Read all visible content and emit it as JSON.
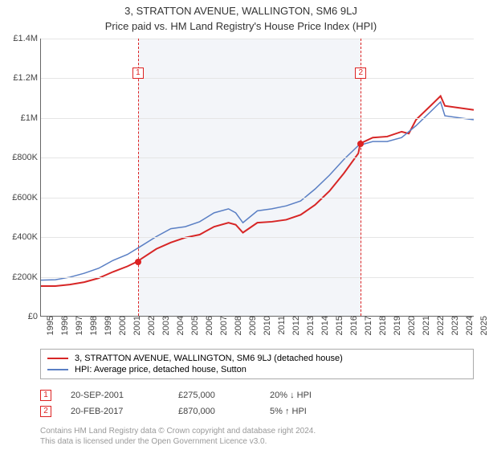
{
  "title_line1": "3, STRATTON AVENUE, WALLINGTON, SM6 9LJ",
  "title_line2": "Price paid vs. HM Land Registry's House Price Index (HPI)",
  "chart": {
    "type": "line",
    "background_color": "#ffffff",
    "shaded_color": "#f3f5f9",
    "grid_color": "#e5e5e5",
    "axis_color": "#666666",
    "label_fontsize": 11,
    "x": {
      "min": 1995,
      "max": 2025,
      "ticks": [
        1995,
        1996,
        1997,
        1998,
        1999,
        2000,
        2001,
        2002,
        2003,
        2004,
        2005,
        2006,
        2007,
        2008,
        2009,
        2010,
        2011,
        2012,
        2013,
        2014,
        2015,
        2016,
        2017,
        2018,
        2019,
        2020,
        2021,
        2022,
        2023,
        2024,
        2025
      ]
    },
    "y": {
      "min": 0,
      "max": 1400000,
      "ticks": [
        {
          "v": 0,
          "label": "£0"
        },
        {
          "v": 200000,
          "label": "£200K"
        },
        {
          "v": 400000,
          "label": "£400K"
        },
        {
          "v": 600000,
          "label": "£600K"
        },
        {
          "v": 800000,
          "label": "£800K"
        },
        {
          "v": 1000000,
          "label": "£1M"
        },
        {
          "v": 1200000,
          "label": "£1.2M"
        },
        {
          "v": 1400000,
          "label": "£1.4M"
        }
      ]
    },
    "shaded_range": {
      "start": 2001.72,
      "end": 2017.13
    },
    "series": [
      {
        "name": "3, STRATTON AVENUE, WALLINGTON, SM6 9LJ (detached house)",
        "color": "#d72626",
        "width": 2,
        "points": [
          [
            1995,
            150000
          ],
          [
            1996,
            150000
          ],
          [
            1997,
            158000
          ],
          [
            1998,
            170000
          ],
          [
            1999,
            190000
          ],
          [
            2000,
            222000
          ],
          [
            2001,
            250000
          ],
          [
            2001.72,
            275000
          ],
          [
            2002,
            290000
          ],
          [
            2003,
            338000
          ],
          [
            2004,
            370000
          ],
          [
            2005,
            395000
          ],
          [
            2006,
            410000
          ],
          [
            2007,
            450000
          ],
          [
            2008,
            470000
          ],
          [
            2008.5,
            460000
          ],
          [
            2009,
            420000
          ],
          [
            2010,
            470000
          ],
          [
            2011,
            475000
          ],
          [
            2012,
            485000
          ],
          [
            2013,
            510000
          ],
          [
            2014,
            560000
          ],
          [
            2015,
            630000
          ],
          [
            2016,
            720000
          ],
          [
            2017,
            820000
          ],
          [
            2017.13,
            870000
          ],
          [
            2018,
            900000
          ],
          [
            2019,
            905000
          ],
          [
            2020,
            930000
          ],
          [
            2020.5,
            920000
          ],
          [
            2021,
            990000
          ],
          [
            2022,
            1060000
          ],
          [
            2022.7,
            1110000
          ],
          [
            2023,
            1060000
          ],
          [
            2024,
            1050000
          ],
          [
            2025,
            1040000
          ]
        ]
      },
      {
        "name": "HPI: Average price, detached house, Sutton",
        "color": "#5a7fc4",
        "width": 1.5,
        "points": [
          [
            1995,
            180000
          ],
          [
            1996,
            182000
          ],
          [
            1997,
            195000
          ],
          [
            1998,
            215000
          ],
          [
            1999,
            240000
          ],
          [
            2000,
            280000
          ],
          [
            2001,
            310000
          ],
          [
            2002,
            355000
          ],
          [
            2003,
            400000
          ],
          [
            2004,
            440000
          ],
          [
            2005,
            450000
          ],
          [
            2006,
            475000
          ],
          [
            2007,
            520000
          ],
          [
            2008,
            540000
          ],
          [
            2008.5,
            520000
          ],
          [
            2009,
            470000
          ],
          [
            2010,
            530000
          ],
          [
            2011,
            540000
          ],
          [
            2012,
            555000
          ],
          [
            2013,
            580000
          ],
          [
            2014,
            640000
          ],
          [
            2015,
            710000
          ],
          [
            2016,
            790000
          ],
          [
            2017,
            860000
          ],
          [
            2018,
            880000
          ],
          [
            2019,
            880000
          ],
          [
            2020,
            900000
          ],
          [
            2021,
            960000
          ],
          [
            2022,
            1030000
          ],
          [
            2022.7,
            1080000
          ],
          [
            2023,
            1010000
          ],
          [
            2024,
            1000000
          ],
          [
            2025,
            990000
          ]
        ]
      }
    ],
    "sale_markers": [
      {
        "idx": "1",
        "x": 2001.72,
        "y": 275000,
        "date": "20-SEP-2001",
        "price": "£275,000",
        "diff": "20% ↓ HPI"
      },
      {
        "idx": "2",
        "x": 2017.13,
        "y": 870000,
        "date": "20-FEB-2017",
        "price": "£870,000",
        "diff": "5% ↑ HPI"
      }
    ]
  },
  "legend": {
    "items": [
      {
        "label": "3, STRATTON AVENUE, WALLINGTON, SM6 9LJ (detached house)",
        "color": "#d72626"
      },
      {
        "label": "HPI: Average price, detached house, Sutton",
        "color": "#5a7fc4"
      }
    ]
  },
  "attribution_line1": "Contains HM Land Registry data © Crown copyright and database right 2024.",
  "attribution_line2": "This data is licensed under the Open Government Licence v3.0."
}
